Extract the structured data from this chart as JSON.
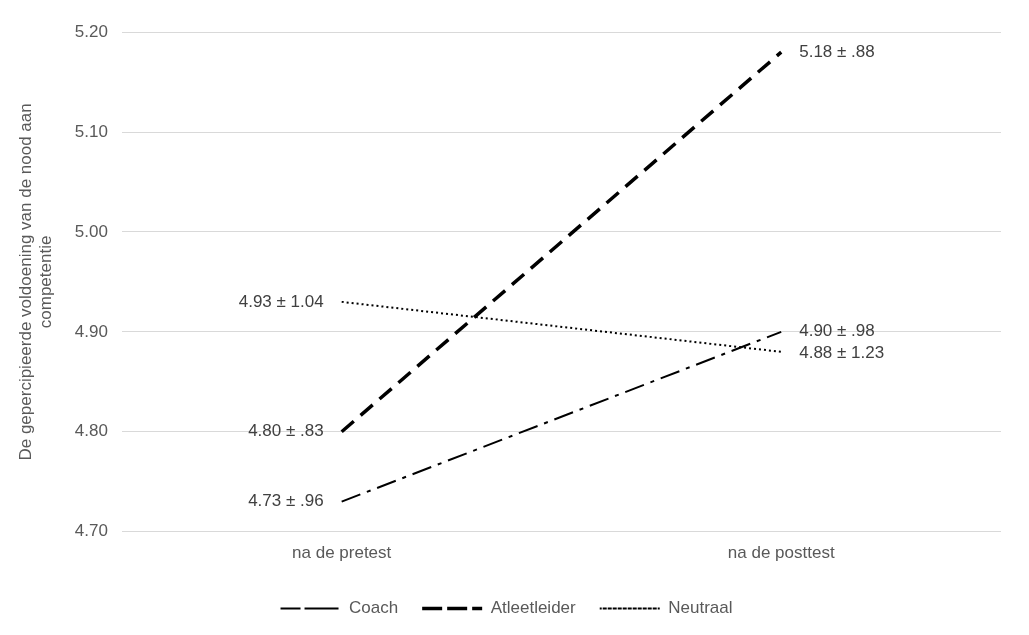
{
  "chart_data": {
    "type": "line",
    "ylabel": "De gepercipieerde voldoening van de nood aan competentie",
    "categories": [
      "na de pretest",
      "na de posttest"
    ],
    "series": [
      {
        "name": "Coach",
        "color": "#000000",
        "line_style": "dashdot",
        "values": [
          4.73,
          4.9
        ],
        "value_labels": [
          "4.73 ± .96",
          "4.90 ± .98"
        ]
      },
      {
        "name": "Atleetleider",
        "color": "#000000",
        "line_style": "dashed",
        "values": [
          4.8,
          5.18
        ],
        "value_labels": [
          "4.80 ± .83",
          "5.18 ± .88"
        ]
      },
      {
        "name": "Neutraal",
        "color": "#000000",
        "line_style": "dotted",
        "values": [
          4.93,
          4.88
        ],
        "value_labels": [
          "4.93 ± 1.04",
          "4.88 ± 1.23"
        ]
      }
    ],
    "ylim": [
      4.7,
      5.2
    ],
    "yticks": [
      {
        "value": 4.7,
        "label": "4.70"
      },
      {
        "value": 4.8,
        "label": "4.80"
      },
      {
        "value": 4.9,
        "label": "4.90"
      },
      {
        "value": 5.0,
        "label": "5.00"
      },
      {
        "value": 5.1,
        "label": "5.10"
      },
      {
        "value": 5.2,
        "label": "5.20"
      }
    ],
    "grid": "y",
    "legend": "bottom",
    "marker": "none"
  }
}
